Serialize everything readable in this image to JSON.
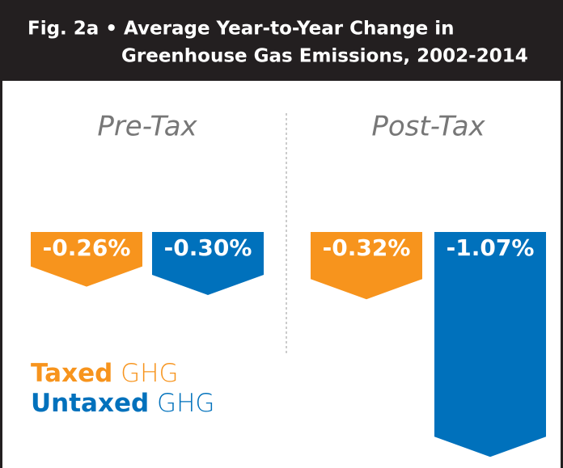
{
  "chart_data": {
    "type": "bar",
    "title": [
      "Fig. 2a • Average Year-to-Year Change in",
      "Greenhouse Gas Emissions, 2002-2014"
    ],
    "categories": [
      "Pre-Tax",
      "Post-Tax"
    ],
    "series": [
      {
        "name": "Taxed GHG",
        "color": "#f7941d",
        "values": [
          -0.26,
          -0.32
        ],
        "value_labels": [
          "-0.26%",
          "-0.32%"
        ]
      },
      {
        "name": "Untaxed GHG",
        "color": "#0071bc",
        "values": [
          -0.3,
          -1.07
        ],
        "value_labels": [
          "-0.30%",
          "-1.07%"
        ]
      }
    ],
    "ylim": [
      -1.1,
      0
    ]
  }
}
